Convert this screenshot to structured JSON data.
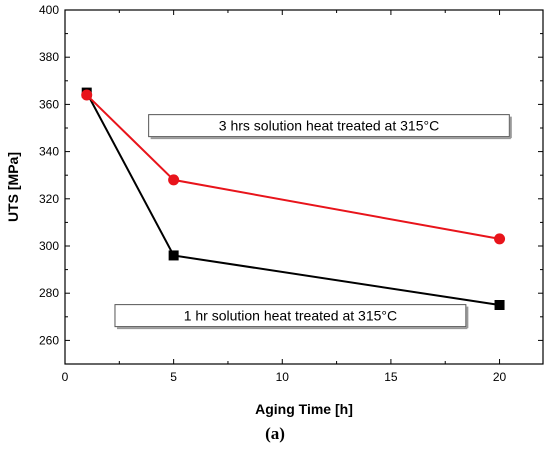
{
  "caption": "(a)",
  "chart_data": {
    "type": "line",
    "xlabel": "Aging Time [h]",
    "ylabel": "UTS [MPa]",
    "xlim": [
      0,
      22
    ],
    "ylim": [
      250,
      400
    ],
    "x_ticks": [
      0,
      5,
      10,
      15,
      20
    ],
    "y_ticks": [
      260,
      280,
      300,
      320,
      340,
      360,
      380,
      400
    ],
    "grid": false,
    "series": [
      {
        "color": "#e8141b",
        "marker": "circle",
        "x": [
          1,
          5,
          20
        ],
        "y": [
          364,
          328,
          303
        ]
      },
      {
        "color": "#000000",
        "marker": "square",
        "x": [
          1,
          5,
          20
        ],
        "y": [
          365,
          296,
          275
        ]
      }
    ],
    "annotations": [
      {
        "text": "3 hrs solution heat treated at 315°C"
      },
      {
        "text": "1 hr solution heat treated at 315°C"
      }
    ]
  }
}
